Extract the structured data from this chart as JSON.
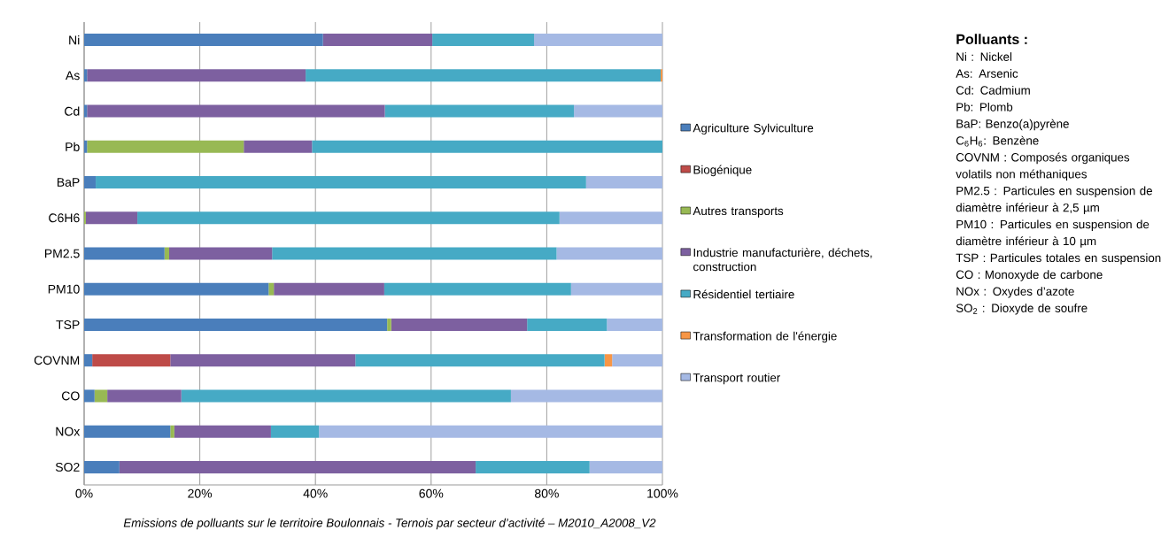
{
  "chart_data": {
    "type": "bar",
    "orientation": "horizontal",
    "stacked": true,
    "grid": "x",
    "legend": "right",
    "categories": [
      "Ni",
      "As",
      "Cd",
      "Pb",
      "BaP",
      "C6H6",
      "PM2.5",
      "PM10",
      "TSP",
      "COVNM",
      "CO",
      "NOx",
      "SO2"
    ],
    "xlim": [
      0,
      100
    ],
    "xticks": [
      {
        "value": 0,
        "label": "0%"
      },
      {
        "value": 20,
        "label": "20%"
      },
      {
        "value": 40,
        "label": "40%"
      },
      {
        "value": 60,
        "label": "60%"
      },
      {
        "value": 80,
        "label": "80%"
      },
      {
        "value": 100,
        "label": "100%"
      }
    ],
    "series": [
      {
        "name": "Agriculture Sylviculture",
        "color": "#4a7ebb",
        "values": [
          41.3,
          0.5,
          0.5,
          0.5,
          2.0,
          0,
          13.9,
          31.9,
          52.4,
          1.4,
          1.8,
          14.9,
          6.1
        ]
      },
      {
        "name": "Biogénique",
        "color": "#be4b48",
        "values": [
          0,
          0,
          0,
          0,
          0,
          0,
          0,
          0,
          0,
          13.5,
          0,
          0,
          0
        ]
      },
      {
        "name": "Autres transports",
        "color": "#98b954",
        "values": [
          0,
          0,
          0,
          27.1,
          0,
          0.3,
          0.8,
          0.9,
          0.7,
          0,
          2.2,
          0.7,
          0
        ]
      },
      {
        "name": "Industrie manufacturière, déchets, construction",
        "color": "#7d60a0",
        "values": [
          18.9,
          37.8,
          51.5,
          11.8,
          0,
          8.9,
          17.8,
          19.1,
          23.5,
          32.0,
          12.8,
          16.7,
          61.6
        ]
      },
      {
        "name": "Résidentiel tertiaire",
        "color": "#46aac5",
        "values": [
          17.6,
          61.4,
          32.7,
          60.6,
          84.8,
          73.0,
          49.2,
          32.3,
          13.8,
          43.1,
          57.0,
          8.3,
          19.7
        ]
      },
      {
        "name": "Transformation de l'énergie",
        "color": "#f79646",
        "values": [
          0,
          0.3,
          0,
          0,
          0,
          0,
          0,
          0,
          0,
          1.3,
          0,
          0,
          0
        ]
      },
      {
        "name": "Transport routier",
        "color": "#a5b9e4",
        "values": [
          22.2,
          0,
          15.3,
          0,
          13.2,
          17.8,
          18.3,
          15.8,
          9.6,
          8.7,
          26.2,
          59.4,
          12.6
        ]
      }
    ],
    "annotations": [
      "Emissions de polluants sur le territoire Boulonnais - Ternois  par secteur d’activité – M2010_A2008_V2",
      "Polluants :",
      "Ni : Nickel",
      "As: Arsenic",
      "Cd: Cadmium",
      "Pb: Plomb",
      "BaP: Benzo(a)pyrène",
      "C$_{6}$H$_{6}$: Benzène",
      "COVNM : Composés organiques volatils non méthaniques",
      "PM2.5 : Particules en suspension de diamètre inférieur à 2,5 µm",
      "PM10 : Particules en suspension de diamètre inférieur à 10 µm",
      "TSP : Particules totales en suspension",
      "CO : Monoxyde de carbone",
      "NOx : Oxydes d’azote",
      "SO$_{2}$ : Dioxyde de soufre"
    ]
  }
}
